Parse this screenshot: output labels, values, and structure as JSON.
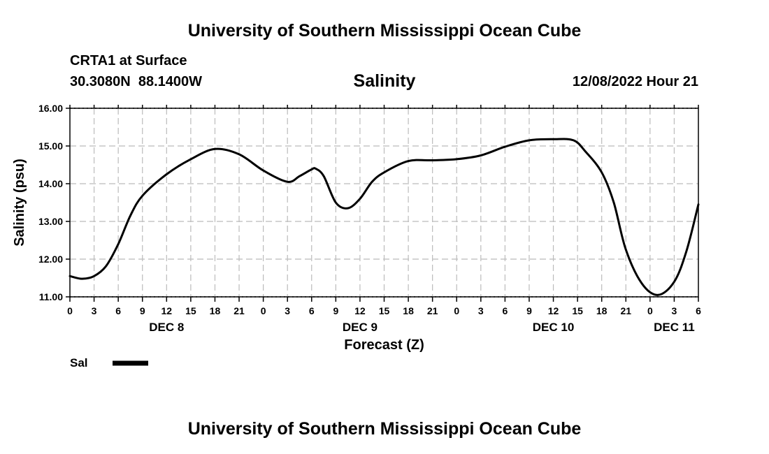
{
  "page": {
    "top_title": "University of Southern Mississippi Ocean Cube",
    "bottom_title": "University of Southern Mississippi Ocean Cube"
  },
  "header": {
    "station": "CRTA1 at Surface",
    "coords": "30.3080N  88.1400W",
    "chart_title": "Salinity",
    "issued": "12/08/2022 Hour 21"
  },
  "legend": {
    "label": "Sal"
  },
  "chart_data": {
    "type": "line",
    "title": "Salinity",
    "xlabel": "Forecast (Z)",
    "ylabel": "Salinity (psu)",
    "xlim": [
      0,
      78
    ],
    "ylim": [
      11,
      16
    ],
    "yticks": [
      11,
      12,
      13,
      14,
      15,
      16
    ],
    "ytick_labels": [
      "11.00",
      "12.00",
      "13.00",
      "14.00",
      "15.00",
      "16.00"
    ],
    "xtick_labels": [
      "0",
      "3",
      "6",
      "9",
      "12",
      "15",
      "18",
      "21",
      "0",
      "3",
      "6",
      "9",
      "12",
      "15",
      "18",
      "21",
      "0",
      "3",
      "6",
      "9",
      "12",
      "15",
      "18",
      "21",
      "0",
      "3",
      "6"
    ],
    "day_labels": [
      {
        "label": "DEC 8",
        "x": 12
      },
      {
        "label": "DEC 9",
        "x": 36
      },
      {
        "label": "DEC 10",
        "x": 60
      },
      {
        "label": "DEC 11",
        "x": 75
      }
    ],
    "grid": true,
    "series": [
      {
        "name": "Sal",
        "x": [
          0,
          1.5,
          3,
          4.5,
          6,
          7.5,
          9,
          12,
          15,
          18,
          21,
          24,
          27,
          28.5,
          30,
          30.5,
          31.5,
          33,
          34.5,
          36,
          37.5,
          39,
          42,
          45,
          48,
          51,
          54,
          57,
          60,
          62.5,
          64,
          66,
          67.5,
          69,
          71,
          73,
          75,
          76.5,
          78
        ],
        "values": [
          11.55,
          11.48,
          11.55,
          11.82,
          12.4,
          13.15,
          13.68,
          14.25,
          14.65,
          14.92,
          14.78,
          14.35,
          14.05,
          14.2,
          14.38,
          14.4,
          14.2,
          13.5,
          13.35,
          13.6,
          14.05,
          14.3,
          14.6,
          14.62,
          14.65,
          14.75,
          14.98,
          15.15,
          15.18,
          15.15,
          14.85,
          14.3,
          13.5,
          12.25,
          11.35,
          11.05,
          11.4,
          12.2,
          13.45
        ]
      }
    ]
  }
}
